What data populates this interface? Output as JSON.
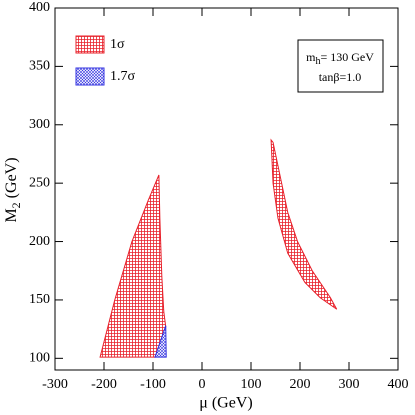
{
  "chart_data": {
    "type": "region",
    "xlabel": "μ (GeV)",
    "ylabel": [
      "M",
      "2",
      " (GeV)"
    ],
    "annotation": [
      "m",
      "h",
      "= 130 GeV",
      "tanβ=1.0"
    ],
    "xlim": [
      -300,
      400
    ],
    "xticks": [
      -300,
      -200,
      -100,
      0,
      100,
      200,
      300,
      400
    ],
    "ylim": [
      90,
      400
    ],
    "yticks": [
      100,
      150,
      200,
      250,
      300,
      350,
      400
    ],
    "series": [
      {
        "name": "1σ",
        "color": "#e8202a",
        "polygons": [
          {
            "x": [
              -208,
              -178,
              -143,
              -110,
              -88,
              -86,
              -82,
              -78,
              -74,
              -95
            ],
            "y": [
              101,
              150,
              200,
              235,
              257,
              220,
              170,
              140,
              127,
              101
            ]
          },
          {
            "x": [
              141,
              145,
              155,
              175,
              210,
              241,
              275,
              262,
              225,
              195,
              175,
              160,
              145
            ],
            "y": [
              287,
              250,
              220,
              190,
              165,
              152,
              142,
              152,
              175,
              200,
              225,
              255,
              285
            ]
          }
        ]
      },
      {
        "name": "1.7σ",
        "color": "#3030e0",
        "polygons": [
          {
            "x": [
              -74,
              -73,
              -96
            ],
            "y": [
              128,
              101,
              101
            ]
          }
        ]
      }
    ]
  }
}
